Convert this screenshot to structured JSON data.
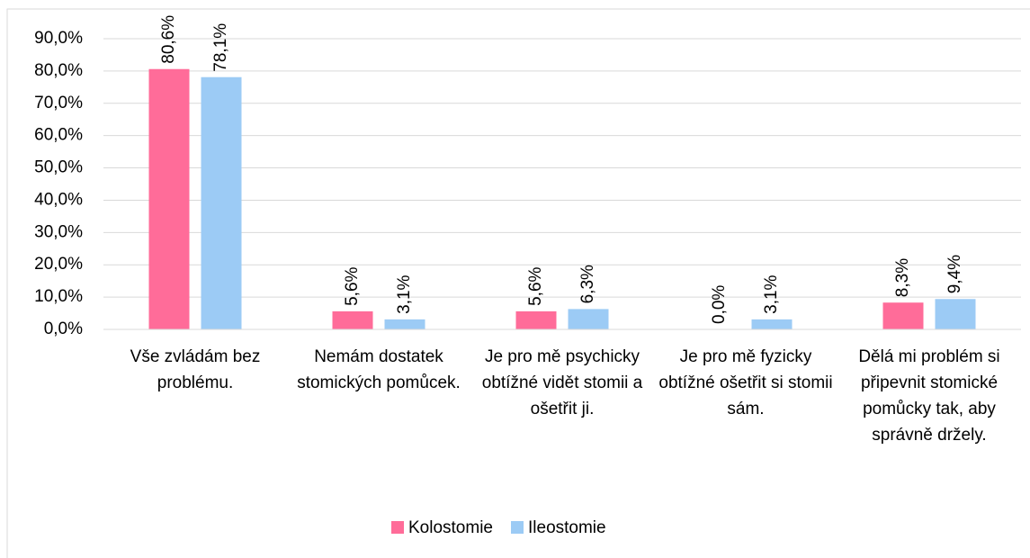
{
  "chart_data": {
    "type": "bar",
    "categories": [
      "Vše zvládám bez problému.",
      "Nemám dostatek stomických pomůcek.",
      "Je pro mě psychicky obtížné vidět stomii a ošetřit ji.",
      "Je pro mě fyzicky obtížné ošetřit si stomii sám.",
      "Dělá mi problém si připevnit stomické pomůcky tak, aby správně držely."
    ],
    "series": [
      {
        "name": "Kolostomie",
        "color": "#ff6c99",
        "values": [
          80.6,
          5.6,
          5.6,
          0.0,
          8.3
        ],
        "value_labels": [
          "80,6%",
          "5,6%",
          "5,6%",
          "0,0%",
          "8,3%"
        ]
      },
      {
        "name": "Ileostomie",
        "color": "#9ccbf5",
        "values": [
          78.1,
          3.1,
          6.3,
          3.1,
          9.4
        ],
        "value_labels": [
          "78,1%",
          "3,1%",
          "6,3%",
          "3,1%",
          "9,4%"
        ]
      }
    ],
    "ylim": [
      0,
      90
    ],
    "yticks": [
      {
        "value": 0,
        "label": "0,0%"
      },
      {
        "value": 10,
        "label": "10,0%"
      },
      {
        "value": 20,
        "label": "20,0%"
      },
      {
        "value": 30,
        "label": "30,0%"
      },
      {
        "value": 40,
        "label": "40,0%"
      },
      {
        "value": 50,
        "label": "50,0%"
      },
      {
        "value": 60,
        "label": "60,0%"
      },
      {
        "value": 70,
        "label": "70,0%"
      },
      {
        "value": 80,
        "label": "80,0%"
      },
      {
        "value": 90,
        "label": "90,0%"
      }
    ],
    "grid": true,
    "legend": "bottom"
  }
}
